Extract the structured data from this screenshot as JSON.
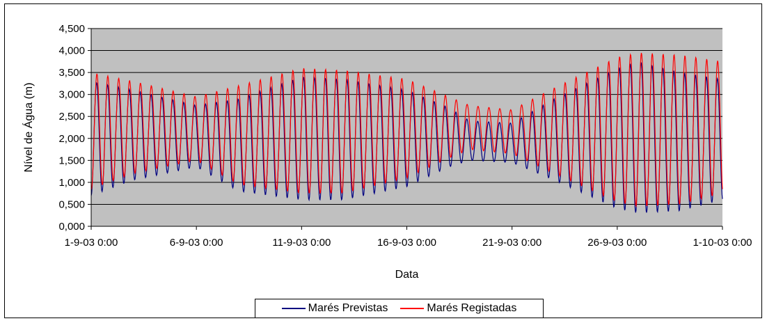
{
  "chart_data": {
    "type": "line",
    "title": "",
    "xlabel": "Data",
    "ylabel": "Nível de Água (m)",
    "x_range": [
      "1-9-03 0:00",
      "1-10-03 0:00"
    ],
    "x_ticks": [
      "1-9-03 0:00",
      "6-9-03 0:00",
      "11-9-03 0:00",
      "16-9-03 0:00",
      "21-9-03 0:00",
      "26-9-03 0:00",
      "1-10-03 0:00"
    ],
    "ylim": [
      0,
      4.5
    ],
    "y_ticks": [
      "0,000",
      "0,500",
      "1,000",
      "1,500",
      "2,000",
      "2,500",
      "3,000",
      "3,500",
      "4,000",
      "4,500"
    ],
    "grid": true,
    "plot_background": "#c0c0c0",
    "legend_position": "bottom",
    "sampling": "semi-diurnal tide: one high and one low water every ~12.4 h, 1-9-03 0:00 to 1-10-03 0:00",
    "series": [
      {
        "name": "Marés Previstas",
        "color": "#000080",
        "high_water_envelope": {
          "dates": [
            "1-9-03",
            "3-9-03",
            "6-9-03",
            "8-9-03",
            "11-9-03",
            "13-9-03",
            "16-9-03",
            "18-9-03",
            "19-9-03",
            "21-9-03",
            "23-9-03",
            "26-9-03",
            "27-9-03",
            "29-9-03",
            "1-10-03"
          ],
          "values": [
            3.3,
            3.1,
            2.75,
            2.9,
            3.4,
            3.35,
            3.1,
            2.7,
            2.4,
            2.35,
            2.9,
            3.6,
            3.75,
            3.5,
            3.35
          ]
        },
        "low_water_envelope": {
          "dates": [
            "1-9-03",
            "3-9-03",
            "6-9-03",
            "8-9-03",
            "11-9-03",
            "13-9-03",
            "16-9-03",
            "18-9-03",
            "19-9-03",
            "21-9-03",
            "23-9-03",
            "26-9-03",
            "27-9-03",
            "29-9-03",
            "1-10-03"
          ],
          "values": [
            0.7,
            1.05,
            1.35,
            0.8,
            0.6,
            0.6,
            0.9,
            1.35,
            1.5,
            1.45,
            1.05,
            0.4,
            0.3,
            0.35,
            0.6
          ]
        }
      },
      {
        "name": "Marés Registadas",
        "color": "#ff0000",
        "high_water_envelope": {
          "dates": [
            "1-9-03",
            "3-9-03",
            "6-9-03",
            "8-9-03",
            "11-9-03",
            "13-9-03",
            "16-9-03",
            "18-9-03",
            "19-9-03",
            "21-9-03",
            "23-9-03",
            "26-9-03",
            "27-9-03",
            "29-9-03",
            "1-10-03"
          ],
          "values": [
            3.5,
            3.3,
            2.95,
            3.2,
            3.6,
            3.55,
            3.35,
            2.95,
            2.75,
            2.65,
            3.15,
            3.85,
            3.95,
            3.9,
            3.75
          ]
        },
        "low_water_envelope": {
          "dates": [
            "1-9-03",
            "3-9-03",
            "6-9-03",
            "8-9-03",
            "11-9-03",
            "13-9-03",
            "16-9-03",
            "18-9-03",
            "19-9-03",
            "21-9-03",
            "23-9-03",
            "26-9-03",
            "27-9-03",
            "29-9-03",
            "1-10-03"
          ],
          "values": [
            0.85,
            1.2,
            1.5,
            0.95,
            0.75,
            0.75,
            1.1,
            1.55,
            1.75,
            1.65,
            1.2,
            0.55,
            0.45,
            0.5,
            0.75
          ]
        }
      }
    ]
  }
}
